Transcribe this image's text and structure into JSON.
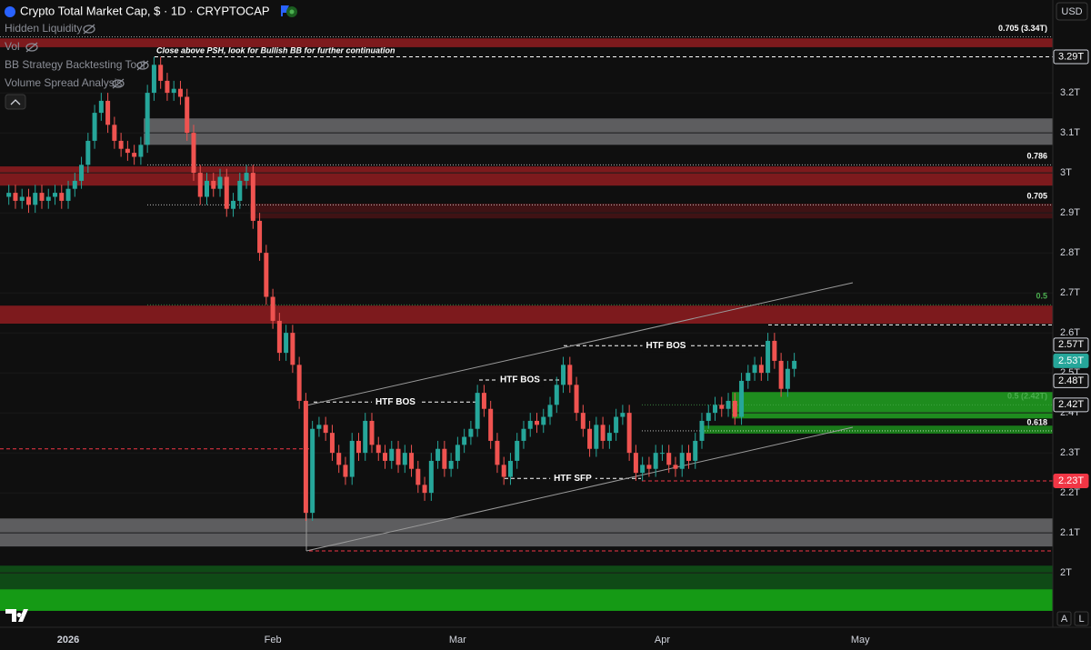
{
  "chart_data": {
    "type": "candlestick",
    "title": "Crypto Total Market Cap, $ · 1D · CRYPTOCAP",
    "categories": [
      null,
      null,
      null,
      null,
      null,
      null,
      null,
      null,
      null,
      "2026",
      null,
      null,
      null,
      null,
      null,
      null,
      null,
      null,
      null,
      null,
      null,
      null,
      null,
      null,
      null,
      null,
      null,
      null,
      null,
      null,
      null,
      null,
      null,
      null,
      null,
      null,
      null,
      null,
      null,
      null,
      "Feb",
      null,
      null,
      null,
      null,
      null,
      null,
      null,
      null,
      null,
      null,
      null,
      null,
      null,
      null,
      null,
      null,
      null,
      null,
      null,
      null,
      null,
      null,
      null,
      null,
      null,
      null,
      null,
      "Mar",
      null,
      null,
      null,
      null,
      null,
      null,
      null,
      null,
      null,
      null,
      null,
      null,
      null,
      null,
      null,
      null,
      null,
      null,
      null,
      null,
      null,
      null,
      null,
      null,
      null,
      null,
      null,
      null,
      null,
      null,
      "Apr",
      null,
      null,
      null,
      null,
      null,
      null,
      null,
      null,
      null,
      null,
      null,
      null,
      null,
      null,
      null,
      null,
      null,
      null,
      null,
      null,
      null,
      null,
      null,
      null,
      null,
      null,
      null,
      null,
      null,
      "May"
    ],
    "open": [
      2.94,
      2.95,
      2.93,
      2.94,
      2.92,
      2.95,
      2.93,
      2.94,
      2.95,
      2.93,
      2.96,
      2.98,
      3.02,
      3.08,
      3.15,
      3.18,
      3.12,
      3.08,
      3.06,
      3.05,
      3.04,
      3.07,
      3.2,
      3.27,
      3.23,
      3.2,
      3.21,
      3.19,
      3.1,
      3.0,
      2.94,
      2.98,
      2.96,
      2.99,
      2.91,
      2.93,
      2.98,
      3.0,
      2.88,
      2.8,
      2.69,
      2.63,
      2.55,
      2.6,
      2.52,
      2.43,
      2.15,
      2.36,
      2.37,
      2.35,
      2.3,
      2.27,
      2.24,
      2.33,
      2.3,
      2.38,
      2.32,
      2.3,
      2.28,
      2.31,
      2.27,
      2.3,
      2.26,
      2.22,
      2.2,
      2.28,
      2.31,
      2.26,
      2.28,
      2.32,
      2.34,
      2.36,
      2.45,
      2.41,
      2.33,
      2.27,
      2.24,
      2.28,
      2.33,
      2.36,
      2.38,
      2.37,
      2.39,
      2.42,
      2.47,
      2.52,
      2.47,
      2.4,
      2.36,
      2.31,
      2.37,
      2.33,
      2.35,
      2.39,
      2.4,
      2.3,
      2.25,
      2.27,
      2.26,
      2.3,
      2.3,
      2.27,
      2.26,
      2.3,
      2.28,
      2.33,
      2.38,
      2.4,
      2.42,
      2.41,
      2.43,
      2.39,
      2.48,
      2.5,
      2.52,
      2.5,
      2.58,
      2.53,
      2.46,
      2.51,
      null,
      null,
      null,
      null,
      null,
      null,
      null,
      null,
      null,
      null
    ],
    "high": [
      2.97,
      2.97,
      2.96,
      2.96,
      2.97,
      2.97,
      2.96,
      2.97,
      2.97,
      2.98,
      3.0,
      3.04,
      3.1,
      3.17,
      3.2,
      3.2,
      3.14,
      3.1,
      3.08,
      3.07,
      3.09,
      3.22,
      3.29,
      3.29,
      3.25,
      3.23,
      3.23,
      3.21,
      3.12,
      3.02,
      3.0,
      3.0,
      3.01,
      3.01,
      2.95,
      3.0,
      3.02,
      3.02,
      2.9,
      2.82,
      2.71,
      2.65,
      2.62,
      2.62,
      2.54,
      2.45,
      2.38,
      2.39,
      2.39,
      2.37,
      2.32,
      2.29,
      2.35,
      2.35,
      2.4,
      2.4,
      2.34,
      2.32,
      2.33,
      2.33,
      2.32,
      2.32,
      2.28,
      2.24,
      2.3,
      2.33,
      2.33,
      2.3,
      2.34,
      2.36,
      2.38,
      2.47,
      2.47,
      2.43,
      2.35,
      2.29,
      2.3,
      2.35,
      2.38,
      2.4,
      2.4,
      2.41,
      2.44,
      2.49,
      2.54,
      2.54,
      2.49,
      2.42,
      2.38,
      2.39,
      2.39,
      2.37,
      2.41,
      2.42,
      2.42,
      2.32,
      2.29,
      2.29,
      2.32,
      2.32,
      2.32,
      2.29,
      2.32,
      2.32,
      2.35,
      2.4,
      2.42,
      2.44,
      2.44,
      2.45,
      2.45,
      2.5,
      2.52,
      2.54,
      2.54,
      2.6,
      2.6,
      2.55,
      2.53,
      2.55,
      null,
      null,
      null,
      null,
      null,
      null,
      null,
      null,
      null,
      null
    ],
    "low": [
      2.92,
      2.91,
      2.91,
      2.9,
      2.9,
      2.91,
      2.91,
      2.92,
      2.91,
      2.91,
      2.94,
      2.96,
      3.0,
      3.06,
      3.13,
      3.1,
      3.06,
      3.04,
      3.03,
      3.02,
      3.02,
      3.05,
      3.18,
      3.21,
      3.18,
      3.18,
      3.17,
      3.08,
      2.98,
      2.92,
      2.92,
      2.94,
      2.94,
      2.89,
      2.89,
      2.91,
      2.96,
      2.86,
      2.78,
      2.67,
      2.61,
      2.53,
      2.53,
      2.5,
      2.41,
      2.13,
      2.13,
      2.34,
      2.33,
      2.28,
      2.25,
      2.22,
      2.22,
      2.28,
      2.28,
      2.3,
      2.28,
      2.26,
      2.26,
      2.25,
      2.25,
      2.24,
      2.2,
      2.18,
      2.18,
      2.26,
      2.24,
      2.24,
      2.26,
      2.3,
      2.32,
      2.34,
      2.39,
      2.31,
      2.25,
      2.22,
      2.22,
      2.26,
      2.31,
      2.34,
      2.35,
      2.35,
      2.37,
      2.4,
      2.45,
      2.45,
      2.38,
      2.34,
      2.29,
      2.29,
      2.31,
      2.31,
      2.33,
      2.37,
      2.28,
      2.23,
      2.23,
      2.24,
      2.24,
      2.28,
      2.25,
      2.24,
      2.24,
      2.26,
      2.26,
      2.31,
      2.36,
      2.38,
      2.39,
      2.39,
      2.37,
      2.37,
      2.46,
      2.48,
      2.48,
      2.48,
      2.51,
      2.44,
      2.44,
      2.49,
      null,
      null,
      null,
      null,
      null,
      null,
      null,
      null,
      null,
      null
    ],
    "close": [
      2.95,
      2.93,
      2.94,
      2.92,
      2.95,
      2.93,
      2.94,
      2.95,
      2.93,
      2.96,
      2.98,
      3.02,
      3.08,
      3.15,
      3.18,
      3.12,
      3.08,
      3.06,
      3.05,
      3.04,
      3.07,
      3.2,
      3.27,
      3.23,
      3.2,
      3.21,
      3.19,
      3.1,
      3.0,
      2.94,
      2.98,
      2.96,
      2.99,
      2.91,
      2.93,
      2.98,
      3.0,
      2.88,
      2.8,
      2.69,
      2.63,
      2.55,
      2.6,
      2.52,
      2.43,
      2.15,
      2.36,
      2.37,
      2.35,
      2.3,
      2.27,
      2.24,
      2.33,
      2.3,
      2.38,
      2.32,
      2.3,
      2.28,
      2.31,
      2.27,
      2.3,
      2.26,
      2.22,
      2.2,
      2.28,
      2.31,
      2.26,
      2.28,
      2.32,
      2.34,
      2.36,
      2.45,
      2.41,
      2.33,
      2.27,
      2.24,
      2.28,
      2.33,
      2.36,
      2.38,
      2.37,
      2.39,
      2.42,
      2.47,
      2.52,
      2.47,
      2.4,
      2.36,
      2.31,
      2.37,
      2.33,
      2.35,
      2.39,
      2.4,
      2.3,
      2.25,
      2.27,
      2.26,
      2.3,
      2.3,
      2.27,
      2.26,
      2.3,
      2.28,
      2.33,
      2.38,
      2.4,
      2.42,
      2.41,
      2.43,
      2.39,
      2.48,
      2.5,
      2.52,
      2.5,
      2.58,
      2.53,
      2.46,
      2.51,
      2.53,
      null,
      null,
      null,
      null,
      null,
      null,
      null,
      null,
      null,
      null
    ],
    "up_color": "#26a69a",
    "down_color": "#ef5350",
    "ylim": [
      1.864,
      3.432
    ],
    "yticks": [
      {
        "value": 2,
        "label": "2T"
      },
      {
        "value": 2.1,
        "label": "2.1T"
      },
      {
        "value": 2.2,
        "label": "2.2T"
      },
      {
        "value": 2.3,
        "label": "2.3T"
      },
      {
        "value": 2.4,
        "label": "2.4T"
      },
      {
        "value": 2.5,
        "label": "2.5T"
      },
      {
        "value": 2.6,
        "label": "2.6T"
      },
      {
        "value": 2.7,
        "label": "2.7T"
      },
      {
        "value": 2.8,
        "label": "2.8T"
      },
      {
        "value": 2.9,
        "label": "2.9T"
      },
      {
        "value": 3,
        "label": "3T"
      },
      {
        "value": 3.1,
        "label": "3.1T"
      },
      {
        "value": 3.2,
        "label": "3.2T"
      }
    ],
    "grid": true,
    "zones": [
      {
        "low": 3.314,
        "high": 3.336,
        "color": "#7d1a1d"
      },
      {
        "low": 3.07,
        "high": 3.136,
        "color": "#5d5d5f"
      },
      {
        "low": 2.968,
        "high": 3.016,
        "color": "#7d1a1d"
      },
      {
        "low": 2.886,
        "high": 2.923,
        "color": "#3f1214"
      },
      {
        "low": 2.623,
        "high": 2.668,
        "color": "#7d1a1d"
      },
      {
        "low": 2.386,
        "high": 2.452,
        "color": "#1e8c1e"
      },
      {
        "low": 2.348,
        "high": 2.368,
        "color": "#1a7a1a"
      },
      {
        "low": 2.066,
        "high": 2.136,
        "color": "#5d5d5f"
      },
      {
        "low": 1.959,
        "high": 2.018,
        "color": "#0f4a16"
      },
      {
        "low": 1.905,
        "high": 1.959,
        "color": "#159a15"
      }
    ],
    "fib_levels": [
      {
        "label": "0.705 (3.34T)",
        "value": 3.34,
        "color": "#ffffff"
      },
      {
        "label": "0.786",
        "value": 3.02,
        "color": "#ffffff"
      },
      {
        "label": "0.705",
        "value": 2.92,
        "color": "#ffffff"
      },
      {
        "label": "0.5",
        "value": 2.67,
        "color": "#4caf50"
      },
      {
        "label": "0.5 (2.42T)",
        "value": 2.42,
        "color": "#4caf50"
      },
      {
        "label": "0.618",
        "value": 2.355,
        "color": "#ffffff"
      }
    ],
    "lines": [
      {
        "value": 3.29,
        "color": "#ffffff"
      },
      {
        "value": 2.62,
        "color": "#ffffff"
      },
      {
        "value": 2.23,
        "color": "#f23645"
      },
      {
        "value": 2.31,
        "color": "#f23645"
      },
      {
        "value": 2.055,
        "color": "#f23645"
      }
    ],
    "annotations": [
      {
        "text": "Close above PSH, look for Bullish BB for further continuation",
        "value": 3.305
      },
      {
        "text": "HTF BOS",
        "value": 2.427
      },
      {
        "text": "HTF BOS",
        "value": 2.482
      },
      {
        "text": "HTF BOS",
        "value": 2.568
      },
      {
        "text": "HTF SFP",
        "value": 2.236
      }
    ],
    "price_labels": [
      {
        "value": 3.29,
        "label": "3.29T",
        "color": "#131313"
      },
      {
        "value": 2.57,
        "label": "2.57T",
        "color": "#131313"
      },
      {
        "value": 2.53,
        "label": "2.53T",
        "color": "#26a69a"
      },
      {
        "value": 2.48,
        "label": "2.48T",
        "color": "#131313"
      },
      {
        "value": 2.42,
        "label": "2.42T",
        "color": "#131313"
      },
      {
        "value": 2.23,
        "label": "2.23T",
        "color": "#f23645"
      }
    ]
  },
  "indicators": [
    "Hidden Liquidity",
    "Vol",
    "BB Strategy Backtesting Tool",
    "Volume Spread Analysis"
  ],
  "ui": {
    "currency": "USD",
    "auto": "A",
    "log": "L"
  }
}
